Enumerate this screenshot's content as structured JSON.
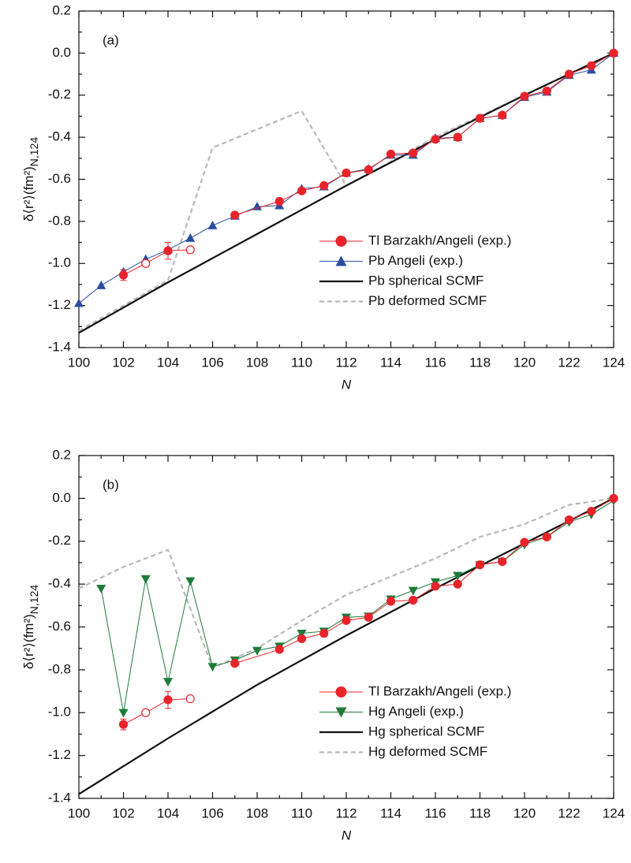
{
  "chart_data": [
    {
      "type": "line",
      "annotation": "(a)",
      "xlabel": "N",
      "ylabel": {
        "main": "δ⟨r²⟩(fm²)",
        "sub": "N,124"
      },
      "xlim": [
        100,
        124
      ],
      "xticks": [
        100,
        102,
        104,
        106,
        108,
        110,
        112,
        114,
        116,
        118,
        120,
        122,
        124
      ],
      "ylim": [
        -1.4,
        0.2
      ],
      "yticks": [
        0.2,
        {
          "value": 0,
          "label": "0.0"
        },
        -0.2,
        -0.4,
        -0.6,
        -0.8,
        {
          "value": -1,
          "label": "-1.0"
        },
        -1.2,
        -1.4
      ],
      "legend": "lower right",
      "series": [
        {
          "name": "Tl Barzakh/Angeli (exp.)",
          "color": "#e8232a",
          "marker": "circle",
          "dash": false,
          "x": [
            102,
            103,
            104,
            105,
            106,
            107,
            109,
            110,
            111,
            112,
            113,
            114,
            115,
            116,
            117,
            118,
            119,
            120,
            121,
            122,
            123,
            124
          ],
          "values": [
            -1.055,
            -1.0,
            -0.94,
            -0.935,
            null,
            -0.77,
            -0.705,
            -0.655,
            -0.63,
            -0.57,
            -0.555,
            -0.48,
            -0.475,
            -0.41,
            -0.4,
            -0.31,
            -0.295,
            -0.205,
            -0.18,
            -0.1,
            -0.06,
            0.0
          ],
          "errors": [
            0.025,
            null,
            0.04,
            null,
            null,
            null,
            null,
            null,
            null,
            null,
            null,
            null,
            null,
            null,
            null,
            null,
            null,
            null,
            null,
            null,
            null,
            null
          ],
          "hollow": [
            false,
            true,
            false,
            true,
            false,
            false,
            false,
            false,
            false,
            false,
            false,
            false,
            false,
            false,
            false,
            false,
            false,
            false,
            false,
            false,
            false,
            false
          ]
        },
        {
          "name": "Pb Angeli (exp.)",
          "color": "#2b4fa0",
          "marker": "triangle-up",
          "dash": false,
          "x": [
            100,
            101,
            102,
            103,
            104,
            105,
            106,
            107,
            108,
            109,
            110,
            111,
            112,
            113,
            114,
            115,
            116,
            117,
            118,
            119,
            120,
            121,
            122,
            123,
            124
          ],
          "values": [
            -1.19,
            -1.105,
            -1.04,
            -0.98,
            -0.935,
            -0.88,
            -0.82,
            -0.775,
            -0.73,
            -0.725,
            -0.645,
            -0.635,
            -0.57,
            -0.55,
            -0.485,
            -0.485,
            -0.405,
            -0.4,
            -0.31,
            -0.295,
            -0.21,
            -0.185,
            -0.105,
            -0.08,
            0.0
          ]
        },
        {
          "name": "Pb spherical SCMF",
          "color": "#111111",
          "marker": "none",
          "dash": false,
          "x": [
            100,
            104,
            108,
            112,
            116,
            120,
            124
          ],
          "values": [
            -1.33,
            -1.09,
            -0.86,
            -0.63,
            -0.41,
            -0.2,
            0.0
          ]
        },
        {
          "name": "Pb deformed SCMF",
          "color": "#b8b8b8",
          "marker": "none",
          "dash": true,
          "x": [
            100,
            104,
            106,
            110,
            112,
            116,
            120,
            124
          ],
          "values": [
            -1.32,
            -1.08,
            -0.45,
            -0.275,
            -0.63,
            -0.4,
            -0.2,
            0.0
          ]
        }
      ]
    },
    {
      "type": "line",
      "annotation": "(b)",
      "xlabel": "N",
      "ylabel": {
        "main": "δ⟨r²⟩(fm²)",
        "sub": "N,124"
      },
      "xlim": [
        100,
        124
      ],
      "xticks": [
        100,
        102,
        104,
        106,
        108,
        110,
        112,
        114,
        116,
        118,
        120,
        122,
        124
      ],
      "ylim": [
        -1.4,
        0.2
      ],
      "yticks": [
        0.2,
        {
          "value": 0,
          "label": "0.0"
        },
        -0.2,
        -0.4,
        -0.6,
        -0.8,
        {
          "value": -1,
          "label": "-1.0"
        },
        -1.2,
        -1.4
      ],
      "legend": "lower right",
      "series": [
        {
          "name": "Tl Barzakh/Angeli (exp.)",
          "color": "#e8232a",
          "marker": "circle",
          "dash": false,
          "x": [
            102,
            103,
            104,
            105,
            106,
            107,
            109,
            110,
            111,
            112,
            113,
            114,
            115,
            116,
            117,
            118,
            119,
            120,
            121,
            122,
            123,
            124
          ],
          "values": [
            -1.055,
            -1.0,
            -0.94,
            -0.935,
            null,
            -0.77,
            -0.705,
            -0.655,
            -0.63,
            -0.57,
            -0.555,
            -0.48,
            -0.475,
            -0.41,
            -0.4,
            -0.31,
            -0.295,
            -0.205,
            -0.18,
            -0.1,
            -0.06,
            0.0
          ],
          "errors": [
            0.025,
            null,
            0.04,
            null,
            null,
            null,
            null,
            null,
            null,
            null,
            null,
            null,
            null,
            null,
            null,
            null,
            null,
            null,
            null,
            null,
            null,
            null
          ],
          "hollow": [
            false,
            true,
            false,
            true,
            false,
            false,
            false,
            false,
            false,
            false,
            false,
            false,
            false,
            false,
            false,
            false,
            false,
            false,
            false,
            false,
            false,
            false
          ]
        },
        {
          "name": "Hg Angeli (exp.)",
          "color": "#1f7a3a",
          "marker": "triangle-down",
          "dash": false,
          "x": [
            101,
            102,
            103,
            104,
            105,
            106,
            107,
            108,
            109,
            110,
            111,
            112,
            113,
            114,
            115,
            116,
            117,
            118,
            119,
            120,
            121,
            122,
            123,
            124
          ],
          "values": [
            -0.42,
            -1.0,
            -0.375,
            -0.855,
            -0.385,
            -0.785,
            -0.755,
            -0.71,
            -0.69,
            -0.63,
            -0.62,
            -0.555,
            -0.55,
            -0.47,
            -0.43,
            -0.39,
            -0.36,
            -0.31,
            -0.295,
            -0.215,
            -0.18,
            -0.11,
            -0.075,
            -0.01
          ]
        },
        {
          "name": "Hg spherical SCMF",
          "color": "#111111",
          "marker": "none",
          "dash": false,
          "x": [
            100,
            104,
            108,
            112,
            116,
            120,
            124
          ],
          "values": [
            -1.38,
            -1.12,
            -0.87,
            -0.64,
            -0.42,
            -0.21,
            0.0
          ]
        },
        {
          "name": "Hg deformed SCMF",
          "color": "#b8b8b8",
          "marker": "none",
          "dash": true,
          "x": [
            100,
            102,
            104,
            106,
            108,
            110,
            112,
            116,
            118,
            120,
            122,
            124
          ],
          "values": [
            -0.42,
            -0.32,
            -0.24,
            -0.79,
            -0.7,
            -0.57,
            -0.45,
            -0.28,
            -0.18,
            -0.12,
            -0.03,
            0.0
          ]
        }
      ]
    }
  ]
}
